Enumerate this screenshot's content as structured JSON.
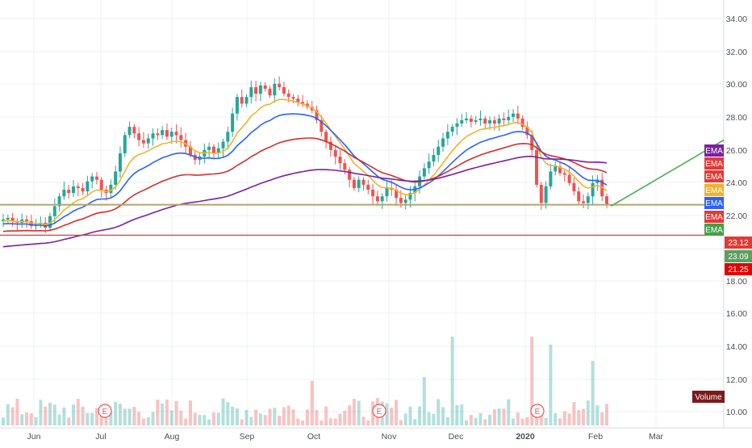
{
  "chart_data": {
    "type": "candlestick",
    "x_ticks": [
      "Jun",
      "Jul",
      "Aug",
      "Sep",
      "Oct",
      "Nov",
      "Dec",
      "2020",
      "Feb",
      "Mar"
    ],
    "y_ticks": [
      "34.00",
      "32.00",
      "30.00",
      "28.00",
      "26.00",
      "24.00",
      "22.00",
      "18.00",
      "16.00",
      "14.00",
      "12.00",
      "10.00"
    ],
    "ylim": [
      9,
      35
    ],
    "grid": true,
    "close_series": [
      22.2,
      22.3,
      22.1,
      22.0,
      22.2,
      22.1,
      21.8,
      21.9,
      22.0,
      21.7,
      22.4,
      23.0,
      23.6,
      24.0,
      23.8,
      24.2,
      24.1,
      23.9,
      24.5,
      24.8,
      24.6,
      24.0,
      23.8,
      24.3,
      25.1,
      26.2,
      27.3,
      27.8,
      27.4,
      27.0,
      26.8,
      27.1,
      27.4,
      27.3,
      27.6,
      27.2,
      27.5,
      27.3,
      27.0,
      26.6,
      26.1,
      25.8,
      26.0,
      26.4,
      26.6,
      26.2,
      26.5,
      26.9,
      27.5,
      28.6,
      29.6,
      29.2,
      29.6,
      30.2,
      29.8,
      30.3,
      30.1,
      29.7,
      30.4,
      30.2,
      29.8,
      29.6,
      29.5,
      29.3,
      29.2,
      29.0,
      28.8,
      28.2,
      27.5,
      26.9,
      26.4,
      26.0,
      25.6,
      25.2,
      24.6,
      24.1,
      24.6,
      24.3,
      24.0,
      23.6,
      23.3,
      23.6,
      24.1,
      24.0,
      23.5,
      23.2,
      23.4,
      23.8,
      24.2,
      24.8,
      25.3,
      25.7,
      26.1,
      26.6,
      27.1,
      27.5,
      27.8,
      28.0,
      28.2,
      28.3,
      28.1,
      28.2,
      28.3,
      28.0,
      28.2,
      28.0,
      28.3,
      28.2,
      28.4,
      28.6,
      28.3,
      27.8,
      27.3,
      26.4,
      24.3,
      23.2,
      24.2,
      25.1,
      25.4,
      25.0,
      24.9,
      24.4,
      23.9,
      23.3,
      23.2,
      23.6,
      24.4,
      24.6,
      23.6,
      23.09
    ],
    "ema_series": [
      {
        "name": "EMA",
        "color": "#f0b429",
        "start": 20.3,
        "end": 24.9
      },
      {
        "name": "EMA",
        "color": "#2962ff",
        "start": 20.0,
        "end": 24.6
      },
      {
        "name": "EMA",
        "color": "#d32f2f",
        "start": 19.8,
        "end": 25.7
      },
      {
        "name": "EMA",
        "color": "#7b1fa2",
        "start": 19.2,
        "end": 25.9
      }
    ],
    "horizontal_levels": [
      {
        "value": 23.09,
        "color": "#b5a46d"
      },
      {
        "value": 21.25,
        "color": "#e53935"
      }
    ],
    "trend_line": {
      "from": 23.0,
      "to": 27.0,
      "color": "#4caf50"
    },
    "earnings_markers": [
      "E",
      "E",
      "E"
    ],
    "legend_tags": [
      {
        "label": "EMA",
        "color": "#7b1fa2"
      },
      {
        "label": "EMA",
        "color": "#e53935"
      },
      {
        "label": "EMA",
        "color": "#e53935"
      },
      {
        "label": "EMA",
        "color": "#f0b429"
      },
      {
        "label": "EMA",
        "color": "#2962ff"
      },
      {
        "label": "EMA",
        "color": "#e53935"
      },
      {
        "label": "EMA",
        "color": "#43a047"
      }
    ],
    "price_tags": [
      {
        "label": "23.12",
        "color": "#e53935"
      },
      {
        "label": "23.09",
        "color": "#5aa05e"
      },
      {
        "label": "21.25",
        "color": "#e50000"
      }
    ],
    "volume_label": "Volume",
    "volume_color": "#7b1a1a"
  }
}
